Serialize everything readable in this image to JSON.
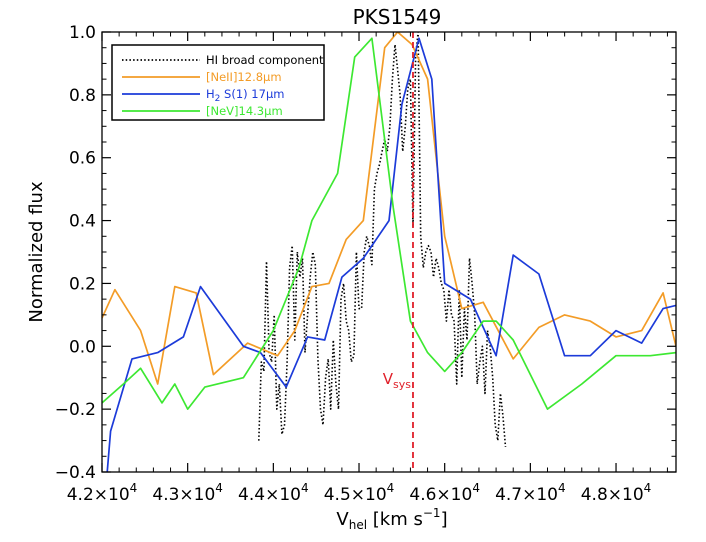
{
  "chart_data": {
    "type": "line",
    "title": "PKS1549",
    "xlabel": {
      "main": "V",
      "sub": "hel",
      "unit_pre": " [km s",
      "unit_sup": "−1",
      "unit_post": "]"
    },
    "ylabel": "Normalized flux",
    "xlim": [
      42000,
      48700
    ],
    "ylim": [
      -0.4,
      1.0
    ],
    "x_ticks": [
      {
        "value": 42000,
        "mant": "4.2×10",
        "exp": "4"
      },
      {
        "value": 43000,
        "mant": "4.3×10",
        "exp": "4"
      },
      {
        "value": 44000,
        "mant": "4.4×10",
        "exp": "4"
      },
      {
        "value": 45000,
        "mant": "4.5×10",
        "exp": "4"
      },
      {
        "value": 46000,
        "mant": "4.6×10",
        "exp": "4"
      },
      {
        "value": 47000,
        "mant": "4.7×10",
        "exp": "4"
      },
      {
        "value": 48000,
        "mant": "4.8×10",
        "exp": "4"
      }
    ],
    "y_ticks": [
      {
        "value": -0.4,
        "label": "−0.4"
      },
      {
        "value": -0.2,
        "label": "−0.2"
      },
      {
        "value": 0.0,
        "label": "0.0"
      },
      {
        "value": 0.2,
        "label": "0.2"
      },
      {
        "value": 0.4,
        "label": "0.4"
      },
      {
        "value": 0.6,
        "label": "0.6"
      },
      {
        "value": 0.8,
        "label": "0.8"
      },
      {
        "value": 1.0,
        "label": "1.0"
      }
    ],
    "vsys": {
      "x": 45630,
      "label_main": "V",
      "label_sub": "sys",
      "color": "#e0202a"
    },
    "legend_position": "top-left",
    "series": [
      {
        "name": "HI broad component",
        "color": "#000000",
        "style": "dotted",
        "x": [
          43830,
          43860,
          43890,
          43920,
          43950,
          43980,
          44010,
          44040,
          44070,
          44100,
          44130,
          44160,
          44190,
          44220,
          44250,
          44280,
          44310,
          44340,
          44370,
          44400,
          44430,
          44460,
          44490,
          44520,
          44550,
          44580,
          44610,
          44640,
          44670,
          44700,
          44730,
          44760,
          44790,
          44820,
          44850,
          44880,
          44910,
          44940,
          44970,
          45000,
          45030,
          45060,
          45090,
          45120,
          45150,
          45180,
          45210,
          45240,
          45270,
          45300,
          45330,
          45360,
          45390,
          45420,
          45450,
          45480,
          45510,
          45540,
          45570,
          45600,
          45630,
          45660,
          45690,
          45720,
          45750,
          45780,
          45810,
          45840,
          45870,
          45900,
          45930,
          45960,
          45990,
          46020,
          46050,
          46080,
          46110,
          46140,
          46170,
          46200,
          46230,
          46260,
          46290,
          46320,
          46350,
          46380,
          46410,
          46440,
          46470,
          46500,
          46530,
          46560,
          46590,
          46620,
          46650,
          46680,
          46710
        ],
        "y": [
          -0.3,
          -0.05,
          -0.08,
          0.27,
          -0.02,
          -0.05,
          0.1,
          -0.2,
          -0.12,
          -0.28,
          -0.25,
          -0.05,
          0.25,
          0.32,
          0.02,
          0.3,
          0.22,
          0.28,
          -0.02,
          0.1,
          0.22,
          0.3,
          0.26,
          -0.04,
          -0.2,
          -0.25,
          -0.1,
          -0.04,
          -0.2,
          0.02,
          -0.12,
          -0.2,
          0.15,
          0.2,
          0.08,
          0.05,
          -0.05,
          -0.03,
          0.3,
          0.12,
          0.12,
          0.3,
          0.35,
          0.32,
          0.26,
          0.5,
          0.55,
          0.58,
          0.62,
          0.66,
          0.62,
          0.7,
          0.85,
          0.96,
          0.88,
          0.8,
          0.62,
          0.7,
          0.82,
          0.85,
          0.38,
          0.92,
          1.0,
          0.35,
          0.25,
          0.3,
          0.32,
          0.3,
          0.22,
          0.28,
          0.25,
          0.2,
          0.18,
          0.08,
          0.18,
          0.1,
          0.08,
          -0.12,
          0.18,
          -0.1,
          0.12,
          0.02,
          0.28,
          0.2,
          0.1,
          -0.12,
          -0.05,
          0.0,
          -0.15,
          0.05,
          0.0,
          -0.1,
          -0.25,
          -0.3,
          -0.15,
          -0.22,
          -0.32
        ]
      },
      {
        "name": "[NeII]12.8μm",
        "legend_main": "[NeII]12.8",
        "legend_unit": "μm",
        "color": "#f39c27",
        "style": "solid",
        "x": [
          42000,
          42150,
          42450,
          42650,
          42850,
          43100,
          43300,
          43700,
          44050,
          44250,
          44450,
          44650,
          44850,
          45050,
          45300,
          45450,
          45620,
          45800,
          46000,
          46200,
          46450,
          46800,
          47100,
          47400,
          47700,
          48000,
          48300,
          48550,
          48700
        ],
        "y": [
          0.09,
          0.18,
          0.05,
          -0.12,
          0.19,
          0.17,
          -0.09,
          0.01,
          -0.03,
          0.05,
          0.19,
          0.2,
          0.34,
          0.4,
          0.95,
          1.0,
          0.96,
          0.85,
          0.35,
          0.12,
          0.14,
          -0.04,
          0.06,
          0.1,
          0.08,
          0.03,
          0.05,
          0.17,
          0.0
        ]
      },
      {
        "name": "H₂ S(1) 17μm",
        "legend_main": "H",
        "legend_sub": "2",
        "legend_mid": " S(1) 17",
        "legend_unit": "μm",
        "color": "#1c3bd9",
        "style": "solid",
        "x": [
          42000,
          42100,
          42350,
          42650,
          42950,
          43150,
          43650,
          43850,
          44150,
          44400,
          44600,
          44800,
          45050,
          45350,
          45500,
          45700,
          45850,
          46000,
          46300,
          46600,
          46800,
          47100,
          47400,
          47700,
          48000,
          48300,
          48550,
          48700
        ],
        "y": [
          -0.6,
          -0.27,
          -0.04,
          -0.02,
          0.03,
          0.19,
          0.0,
          -0.02,
          -0.13,
          0.03,
          0.02,
          0.22,
          0.28,
          0.4,
          0.77,
          0.98,
          0.85,
          0.2,
          0.15,
          -0.03,
          0.29,
          0.23,
          -0.03,
          -0.03,
          0.05,
          0.01,
          0.12,
          0.13
        ]
      },
      {
        "name": "[NeV]14.3μm",
        "legend_main": "[NeV]14.3",
        "legend_unit": "μm",
        "color": "#3de832",
        "style": "solid",
        "x": [
          42000,
          42250,
          42450,
          42700,
          42850,
          43000,
          43200,
          43650,
          44000,
          44300,
          44450,
          44750,
          44950,
          45150,
          45400,
          45600,
          45800,
          46000,
          46200,
          46450,
          46600,
          46800,
          47200,
          47600,
          48000,
          48400,
          48700
        ],
        "y": [
          -0.18,
          -0.12,
          -0.07,
          -0.18,
          -0.12,
          -0.2,
          -0.13,
          -0.1,
          0.05,
          0.25,
          0.4,
          0.55,
          0.92,
          0.98,
          0.44,
          0.08,
          -0.02,
          -0.08,
          -0.02,
          0.08,
          0.08,
          0.02,
          -0.2,
          -0.12,
          -0.03,
          -0.03,
          -0.02
        ]
      }
    ]
  }
}
